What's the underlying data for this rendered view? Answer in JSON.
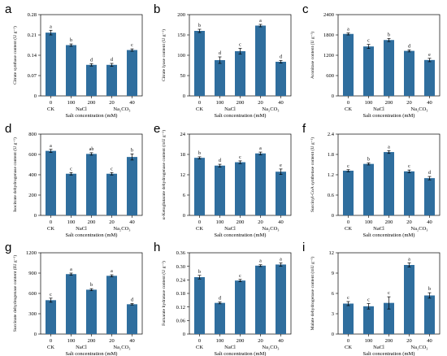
{
  "chart_data": [
    {
      "panel": "a",
      "type": "bar",
      "ylabel": "Citrate synthase content (U g⁻¹)",
      "xlabel": "Salt concentration (mM)",
      "categories": [
        "0",
        "100",
        "200",
        "20",
        "40"
      ],
      "groups": [
        "CK",
        "NaCl",
        "Na₂CO₃"
      ],
      "values": [
        0.218,
        0.175,
        0.107,
        0.107,
        0.158
      ],
      "errors": [
        0.008,
        0.004,
        0.004,
        0.005,
        0.004
      ],
      "significance": [
        "a",
        "b",
        "d",
        "d",
        "c"
      ],
      "ylim": [
        0,
        0.28
      ],
      "yticks": [
        "0",
        "0.07",
        "0.14",
        "0.21",
        "0.28"
      ]
    },
    {
      "panel": "b",
      "type": "bar",
      "ylabel": "Citrate lyase content (U g⁻¹)",
      "xlabel": "Salt concentration (mM)",
      "categories": [
        "0",
        "100",
        "200",
        "20",
        "40"
      ],
      "groups": [
        "CK",
        "NaCl",
        "Na₂CO₃"
      ],
      "values": [
        160,
        88,
        110,
        173,
        84
      ],
      "errors": [
        4,
        8,
        7,
        3,
        3
      ],
      "significance": [
        "b",
        "d",
        "c",
        "a",
        "d"
      ],
      "ylim": [
        0,
        200
      ],
      "yticks": [
        "0",
        "50",
        "100",
        "150",
        "200"
      ]
    },
    {
      "panel": "c",
      "type": "bar",
      "ylabel": "Aconitase content (U g⁻¹)",
      "xlabel": "Salt concentration (mM)",
      "categories": [
        "0",
        "100",
        "200",
        "20",
        "40"
      ],
      "groups": [
        "CK",
        "NaCl",
        "Na₂CO₃"
      ],
      "values": [
        1830,
        1460,
        1650,
        1330,
        1060
      ],
      "errors": [
        30,
        60,
        45,
        30,
        50
      ],
      "significance": [
        "a",
        "c",
        "b",
        "d",
        "e"
      ],
      "ylim": [
        0,
        2400
      ],
      "yticks": [
        "0",
        "600",
        "1200",
        "1800",
        "2400"
      ]
    },
    {
      "panel": "d",
      "type": "bar",
      "ylabel": "Isocitrate dehydrogenase content (U g⁻¹)",
      "xlabel": "Salt concentration (mM)",
      "categories": [
        "0",
        "100",
        "200",
        "20",
        "40"
      ],
      "groups": [
        "CK",
        "NaCl",
        "Na₂CO₃"
      ],
      "values": [
        635,
        410,
        605,
        410,
        575
      ],
      "errors": [
        15,
        12,
        12,
        12,
        30
      ],
      "significance": [
        "a",
        "c",
        "ab",
        "c",
        "b"
      ],
      "ylim": [
        0,
        800
      ],
      "yticks": [
        "0",
        "200",
        "400",
        "600",
        "800"
      ]
    },
    {
      "panel": "e",
      "type": "bar",
      "ylabel": "α-Ketoglutarate dehydrogenase content (mU g⁻¹)",
      "xlabel": "Salt concentration (mM)",
      "categories": [
        "0",
        "100",
        "200",
        "20",
        "40"
      ],
      "groups": [
        "CK",
        "NaCl",
        "Na₂CO₃"
      ],
      "values": [
        17.0,
        14.7,
        15.7,
        18.3,
        12.9
      ],
      "errors": [
        0.3,
        0.4,
        0.4,
        0.4,
        0.8
      ],
      "significance": [
        "b",
        "d",
        "c",
        "a",
        "e"
      ],
      "ylim": [
        0,
        24
      ],
      "yticks": [
        "0",
        "6",
        "12",
        "18",
        "24"
      ]
    },
    {
      "panel": "f",
      "type": "bar",
      "ylabel": "Succinyl-CoA synthetase content (U g⁻¹)",
      "xlabel": "Salt concentration (mM)",
      "categories": [
        "0",
        "100",
        "200",
        "20",
        "40"
      ],
      "groups": [
        "CK",
        "NaCl",
        "Na₂CO₃"
      ],
      "values": [
        1.32,
        1.52,
        1.87,
        1.3,
        1.1
      ],
      "errors": [
        0.03,
        0.03,
        0.04,
        0.04,
        0.05
      ],
      "significance": [
        "c",
        "b",
        "a",
        "c",
        "d"
      ],
      "ylim": [
        0,
        2.4
      ],
      "yticks": [
        "0",
        "0.6",
        "1.2",
        "1.8",
        "2.4"
      ]
    },
    {
      "panel": "g",
      "type": "bar",
      "ylabel": "Succinate dehydrogenase content (IU g⁻¹)",
      "xlabel": "Salt concentration (mM)",
      "categories": [
        "0",
        "100",
        "200",
        "20",
        "40"
      ],
      "groups": [
        "CK",
        "NaCl",
        "Na₂CO₃"
      ],
      "values": [
        500,
        885,
        655,
        860,
        440
      ],
      "errors": [
        30,
        15,
        15,
        15,
        10
      ],
      "significance": [
        "c",
        "a",
        "b",
        "a",
        "d"
      ],
      "ylim": [
        0,
        1200
      ],
      "yticks": [
        "0",
        "300",
        "600",
        "900",
        "1200"
      ]
    },
    {
      "panel": "h",
      "type": "bar",
      "ylabel": "Fumarate hydratase content (U g⁻¹)",
      "xlabel": "Salt concentration (mM)",
      "categories": [
        "0",
        "100",
        "200",
        "20",
        "40"
      ],
      "groups": [
        "CK",
        "NaCl",
        "Na₂CO₃"
      ],
      "values": [
        0.252,
        0.138,
        0.237,
        0.303,
        0.308
      ],
      "errors": [
        0.008,
        0.004,
        0.005,
        0.004,
        0.007
      ],
      "significance": [
        "b",
        "d",
        "c",
        "a",
        "a"
      ],
      "ylim": [
        0,
        0.36
      ],
      "yticks": [
        "0",
        "0.06",
        "0.12",
        "0.18",
        "0.24",
        "0.30",
        "0.36"
      ]
    },
    {
      "panel": "i",
      "type": "bar",
      "ylabel": "Malate dehydrogenase content (mU g⁻¹)",
      "xlabel": "Salt concentration (mM)",
      "categories": [
        "0",
        "100",
        "200",
        "20",
        "40"
      ],
      "groups": [
        "CK",
        "NaCl",
        "Na₂CO₃"
      ],
      "values": [
        4.5,
        4.1,
        4.6,
        10.2,
        5.7
      ],
      "errors": [
        0.3,
        0.4,
        0.9,
        0.3,
        0.4
      ],
      "significance": [
        "c",
        "c",
        "c",
        "a",
        "b"
      ],
      "ylim": [
        0,
        12
      ],
      "yticks": [
        "0",
        "3",
        "6",
        "9",
        "12"
      ]
    }
  ],
  "colors": {
    "bar": "#2f6e9e",
    "axis": "#000000"
  }
}
